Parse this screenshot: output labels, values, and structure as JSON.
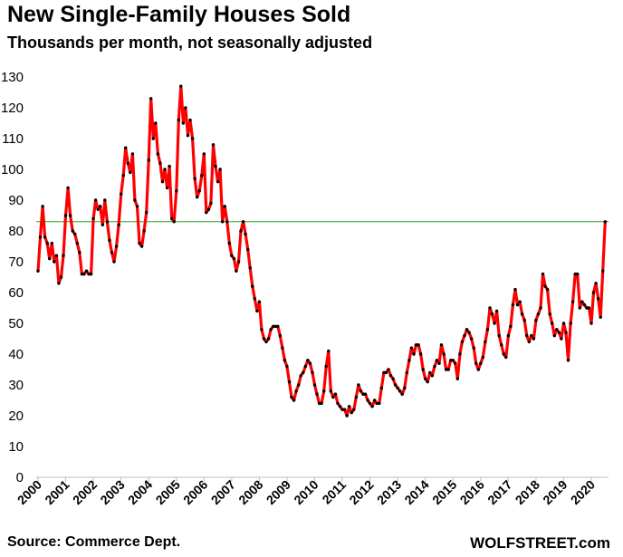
{
  "title": "New Single-Family Houses Sold",
  "subtitle": "Thousands per month, not seasonally adjusted",
  "source": "Source: Commerce Dept.",
  "brand": "WOLFSTREET.com",
  "colors": {
    "series": "#ff0000",
    "markers": "#000000",
    "reference_line": "#2ca02c",
    "axis": "#bfbfbf"
  },
  "chart_data": {
    "type": "line",
    "ylim": [
      0,
      130
    ],
    "yticks": [
      0,
      10,
      20,
      30,
      40,
      50,
      60,
      70,
      80,
      90,
      100,
      110,
      120,
      130
    ],
    "xticks": [
      "2000",
      "2001",
      "2002",
      "2003",
      "2004",
      "2005",
      "2006",
      "2007",
      "2008",
      "2009",
      "2010",
      "2011",
      "2012",
      "2013",
      "2014",
      "2015",
      "2016",
      "2017",
      "2018",
      "2019",
      "2020"
    ],
    "reference_line": 83,
    "markers": true,
    "legend": "none",
    "grid": false,
    "x": [
      "2000-01",
      "2000-02",
      "2000-03",
      "2000-04",
      "2000-05",
      "2000-06",
      "2000-07",
      "2000-08",
      "2000-09",
      "2000-10",
      "2000-11",
      "2000-12",
      "2001-01",
      "2001-02",
      "2001-03",
      "2001-04",
      "2001-05",
      "2001-06",
      "2001-07",
      "2001-08",
      "2001-09",
      "2001-10",
      "2001-11",
      "2001-12",
      "2002-01",
      "2002-02",
      "2002-03",
      "2002-04",
      "2002-05",
      "2002-06",
      "2002-07",
      "2002-08",
      "2002-09",
      "2002-10",
      "2002-11",
      "2002-12",
      "2003-01",
      "2003-02",
      "2003-03",
      "2003-04",
      "2003-05",
      "2003-06",
      "2003-07",
      "2003-08",
      "2003-09",
      "2003-10",
      "2003-11",
      "2003-12",
      "2004-01",
      "2004-02",
      "2004-03",
      "2004-04",
      "2004-05",
      "2004-06",
      "2004-07",
      "2004-08",
      "2004-09",
      "2004-10",
      "2004-11",
      "2004-12",
      "2005-01",
      "2005-02",
      "2005-03",
      "2005-04",
      "2005-05",
      "2005-06",
      "2005-07",
      "2005-08",
      "2005-09",
      "2005-10",
      "2005-11",
      "2005-12",
      "2006-01",
      "2006-02",
      "2006-03",
      "2006-04",
      "2006-05",
      "2006-06",
      "2006-07",
      "2006-08",
      "2006-09",
      "2006-10",
      "2006-11",
      "2006-12",
      "2007-01",
      "2007-02",
      "2007-03",
      "2007-04",
      "2007-05",
      "2007-06",
      "2007-07",
      "2007-08",
      "2007-09",
      "2007-10",
      "2007-11",
      "2007-12",
      "2008-01",
      "2008-02",
      "2008-03",
      "2008-04",
      "2008-05",
      "2008-06",
      "2008-07",
      "2008-08",
      "2008-09",
      "2008-10",
      "2008-11",
      "2008-12",
      "2009-01",
      "2009-02",
      "2009-03",
      "2009-04",
      "2009-05",
      "2009-06",
      "2009-07",
      "2009-08",
      "2009-09",
      "2009-10",
      "2009-11",
      "2009-12",
      "2010-01",
      "2010-02",
      "2010-03",
      "2010-04",
      "2010-05",
      "2010-06",
      "2010-07",
      "2010-08",
      "2010-09",
      "2010-10",
      "2010-11",
      "2010-12",
      "2011-01",
      "2011-02",
      "2011-03",
      "2011-04",
      "2011-05",
      "2011-06",
      "2011-07",
      "2011-08",
      "2011-09",
      "2011-10",
      "2011-11",
      "2011-12",
      "2012-01",
      "2012-02",
      "2012-03",
      "2012-04",
      "2012-05",
      "2012-06",
      "2012-07",
      "2012-08",
      "2012-09",
      "2012-10",
      "2012-11",
      "2012-12",
      "2013-01",
      "2013-02",
      "2013-03",
      "2013-04",
      "2013-05",
      "2013-06",
      "2013-07",
      "2013-08",
      "2013-09",
      "2013-10",
      "2013-11",
      "2013-12",
      "2014-01",
      "2014-02",
      "2014-03",
      "2014-04",
      "2014-05",
      "2014-06",
      "2014-07",
      "2014-08",
      "2014-09",
      "2014-10",
      "2014-11",
      "2014-12",
      "2015-01",
      "2015-02",
      "2015-03",
      "2015-04",
      "2015-05",
      "2015-06",
      "2015-07",
      "2015-08",
      "2015-09",
      "2015-10",
      "2015-11",
      "2015-12",
      "2016-01",
      "2016-02",
      "2016-03",
      "2016-04",
      "2016-05",
      "2016-06",
      "2016-07",
      "2016-08",
      "2016-09",
      "2016-10",
      "2016-11",
      "2016-12",
      "2017-01",
      "2017-02",
      "2017-03",
      "2017-04",
      "2017-05",
      "2017-06",
      "2017-07",
      "2017-08",
      "2017-09",
      "2017-10",
      "2017-11",
      "2017-12",
      "2018-01",
      "2018-02",
      "2018-03",
      "2018-04",
      "2018-05",
      "2018-06",
      "2018-07",
      "2018-08",
      "2018-09",
      "2018-10",
      "2018-11",
      "2018-12",
      "2019-01",
      "2019-02",
      "2019-03",
      "2019-04",
      "2019-05",
      "2019-06",
      "2019-07",
      "2019-08",
      "2019-09",
      "2019-10",
      "2019-11",
      "2019-12",
      "2020-01",
      "2020-02",
      "2020-03",
      "2020-04",
      "2020-05",
      "2020-06",
      "2020-07"
    ],
    "values": [
      67,
      78,
      88,
      78,
      76,
      71,
      76,
      70,
      72,
      63,
      65,
      72,
      85,
      94,
      85,
      80,
      79,
      76,
      73,
      66,
      66,
      67,
      66,
      66,
      84,
      90,
      87,
      88,
      82,
      90,
      83,
      77,
      73,
      70,
      75,
      82,
      92,
      98,
      107,
      102,
      99,
      105,
      90,
      88,
      76,
      75,
      80,
      86,
      103,
      123,
      110,
      115,
      105,
      102,
      96,
      100,
      94,
      101,
      84,
      83,
      93,
      116,
      127,
      115,
      120,
      111,
      116,
      110,
      97,
      91,
      93,
      98,
      105,
      86,
      87,
      89,
      108,
      101,
      96,
      100,
      83,
      88,
      83,
      76,
      72,
      71,
      67,
      70,
      80,
      83,
      79,
      74,
      68,
      62,
      58,
      54,
      57,
      48,
      45,
      44,
      45,
      48,
      49,
      49,
      49,
      46,
      42,
      38,
      36,
      31,
      26,
      25,
      28,
      30,
      33,
      34,
      36,
      38,
      37,
      34,
      30,
      27,
      24,
      24,
      28,
      36,
      41,
      28,
      26,
      27,
      24,
      23,
      22,
      22,
      20,
      23,
      21,
      22,
      26,
      30,
      28,
      27,
      27,
      25,
      24,
      23,
      25,
      24,
      24,
      29,
      34,
      34,
      35,
      33,
      32,
      30,
      29,
      28,
      27,
      29,
      34,
      38,
      42,
      40,
      43,
      43,
      40,
      35,
      32,
      31,
      34,
      33,
      36,
      38,
      37,
      43,
      40,
      35,
      35,
      38,
      38,
      37,
      32,
      40,
      44,
      46,
      48,
      47,
      45,
      42,
      37,
      35,
      37,
      39,
      44,
      48,
      55,
      53,
      50,
      54,
      46,
      43,
      40,
      39,
      46,
      49,
      56,
      61,
      56,
      57,
      53,
      51,
      46,
      44,
      46,
      45,
      51,
      53,
      55,
      66,
      62,
      61,
      53,
      50,
      46,
      48,
      47,
      45,
      50,
      47,
      38,
      50,
      57,
      66,
      66,
      55,
      57,
      56,
      55,
      55,
      50,
      60,
      63,
      58,
      52,
      67,
      83
    ]
  }
}
